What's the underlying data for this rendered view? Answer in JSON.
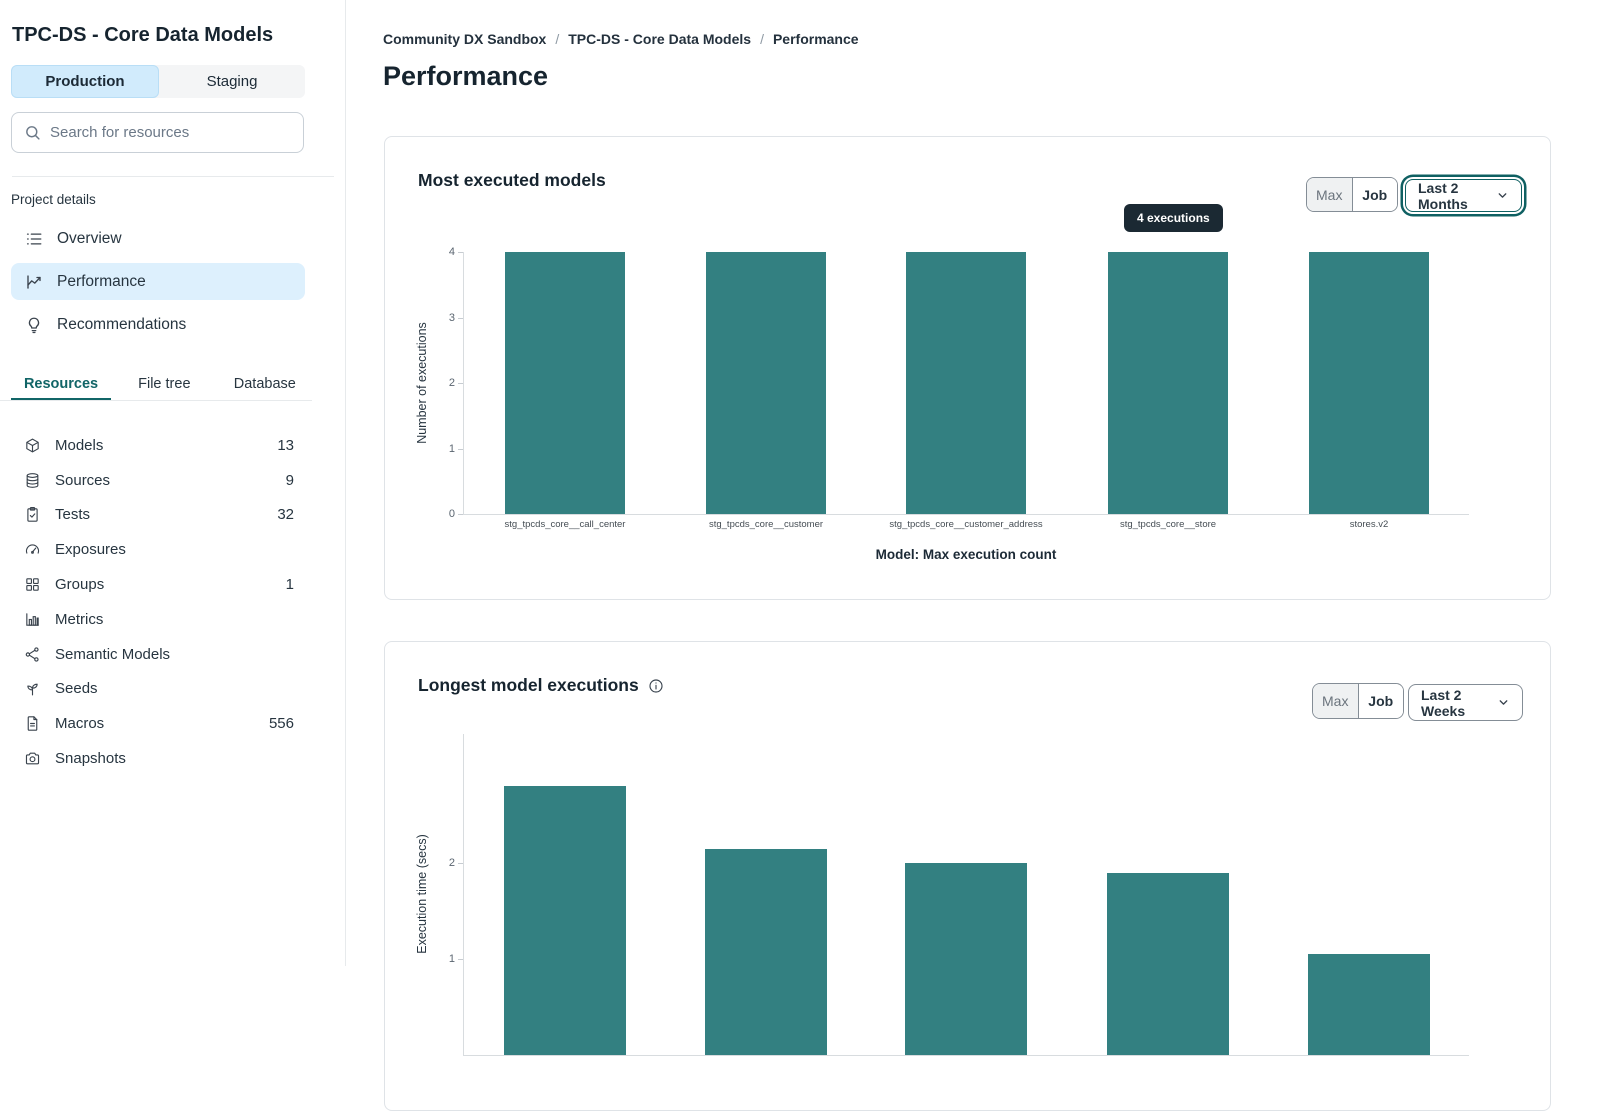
{
  "sidebar": {
    "project_title": "TPC-DS - Core Data Models",
    "env_tabs": [
      {
        "label": "Production",
        "active": true
      },
      {
        "label": "Staging",
        "active": false
      }
    ],
    "search": {
      "placeholder": "Search for resources"
    },
    "section_label": "Project details",
    "nav": [
      {
        "icon": "list-icon",
        "label": "Overview",
        "active": false
      },
      {
        "icon": "chart-line-icon",
        "label": "Performance",
        "active": true
      },
      {
        "icon": "lightbulb-icon",
        "label": "Recommendations",
        "active": false
      }
    ],
    "resource_tabs": [
      {
        "label": "Resources",
        "active": true
      },
      {
        "label": "File tree",
        "active": false
      },
      {
        "label": "Database",
        "active": false
      }
    ],
    "resources": [
      {
        "icon": "cube-icon",
        "label": "Models",
        "count": "13"
      },
      {
        "icon": "database-icon",
        "label": "Sources",
        "count": "9"
      },
      {
        "icon": "clipboard-check-icon",
        "label": "Tests",
        "count": "32"
      },
      {
        "icon": "gauge-icon",
        "label": "Exposures",
        "count": ""
      },
      {
        "icon": "grid-icon",
        "label": "Groups",
        "count": "1"
      },
      {
        "icon": "bar-chart-icon",
        "label": "Metrics",
        "count": ""
      },
      {
        "icon": "share-nodes-icon",
        "label": "Semantic Models",
        "count": ""
      },
      {
        "icon": "seedling-icon",
        "label": "Seeds",
        "count": ""
      },
      {
        "icon": "file-lines-icon",
        "label": "Macros",
        "count": "556"
      },
      {
        "icon": "camera-icon",
        "label": "Snapshots",
        "count": ""
      }
    ]
  },
  "breadcrumb": [
    {
      "label": "Community DX Sandbox"
    },
    {
      "label": "TPC-DS - Core Data Models"
    },
    {
      "label": "Performance"
    }
  ],
  "page_title": "Performance",
  "cards": [
    {
      "title": "Most executed models",
      "controls": {
        "max": "Max",
        "job": "Job",
        "range": "Last 2 Months"
      },
      "tooltip": "4 executions"
    },
    {
      "title": "Longest model executions",
      "controls": {
        "max": "Max",
        "job": "Job",
        "range": "Last 2 Weeks"
      }
    }
  ],
  "colors": {
    "bar": "#338081",
    "accent_teal": "#0f6062",
    "active_blue": "#d1ebfc"
  },
  "chart_data": [
    {
      "type": "bar",
      "title": "Most executed models",
      "categories": [
        "stg_tpcds_core__call_center",
        "stg_tpcds_core__customer",
        "stg_tpcds_core__customer_address",
        "stg_tpcds_core__store",
        "stores.v2"
      ],
      "values": [
        4,
        4,
        4,
        4,
        4
      ],
      "xlabel": "Model: Max execution count",
      "ylabel": "Number of executions",
      "ylim": [
        0,
        4
      ],
      "yticks": [
        0,
        1,
        2,
        3,
        4
      ],
      "bar_color": "#338081",
      "legend": false,
      "grid": false,
      "tooltip": {
        "text": "4 executions",
        "bar_index": 3
      },
      "time_range": "Last 2 Months",
      "aggregation": "Max"
    },
    {
      "type": "bar",
      "title": "Longest model executions",
      "categories": [
        "",
        "",
        "",
        "",
        ""
      ],
      "values": [
        2.8,
        2.15,
        2.0,
        1.9,
        1.05
      ],
      "xlabel": "",
      "ylabel": "Execution time (secs)",
      "ylim": [
        0,
        3
      ],
      "yticks": [
        1,
        2
      ],
      "bar_color": "#338081",
      "legend": false,
      "grid": false,
      "time_range": "Last 2 Weeks",
      "aggregation": "Job",
      "note": "chart partially visible, cut off at bottom of viewport"
    }
  ]
}
